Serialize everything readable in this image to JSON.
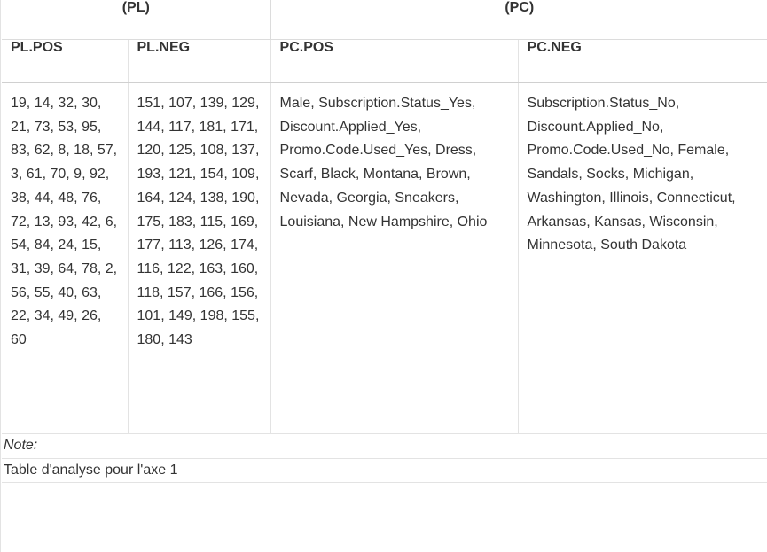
{
  "table": {
    "groups": {
      "pl": "(PL)",
      "pc": "(PC)"
    },
    "columns": {
      "pl_pos": "PL.POS",
      "pl_neg": "PL.NEG",
      "pc_pos": "PC.POS",
      "pc_neg": "PC.NEG"
    },
    "cells": {
      "pl_pos": "19, 14, 32, 30, 21, 73, 53, 95, 83, 62, 8, 18, 57, 3, 61, 70, 9, 92, 38, 44, 48, 76, 72, 13, 93, 42, 6, 54, 84, 24, 15, 31, 39, 64, 78, 2, 56, 55, 40, 63, 22, 34, 49, 26, 60",
      "pl_neg": "151, 107, 139, 129, 144, 117, 181, 171, 120, 125, 108, 137, 193, 121, 154, 109, 164, 124, 138, 190, 175, 183, 115, 169, 177, 113, 126, 174, 116, 122, 163, 160, 118, 157, 166, 156, 101, 149, 198, 155, 180, 143",
      "pc_pos": "Male, Subscription.Status_Yes, Discount.Applied_Yes, Promo.Code.Used_Yes, Dress, Scarf, Black, Montana, Brown, Nevada, Georgia, Sneakers, Louisiana, New Hampshire, Ohio",
      "pc_neg": "Subscription.Status_No, Discount.Applied_No, Promo.Code.Used_No, Female, Sandals, Socks, Michigan, Washington, Illinois, Connecticut, Arkansas, Kansas, Wisconsin, Minnesota, South Dakota"
    }
  },
  "note": {
    "label": "Note:",
    "text": "Table d'analyse pour l'axe 1"
  }
}
